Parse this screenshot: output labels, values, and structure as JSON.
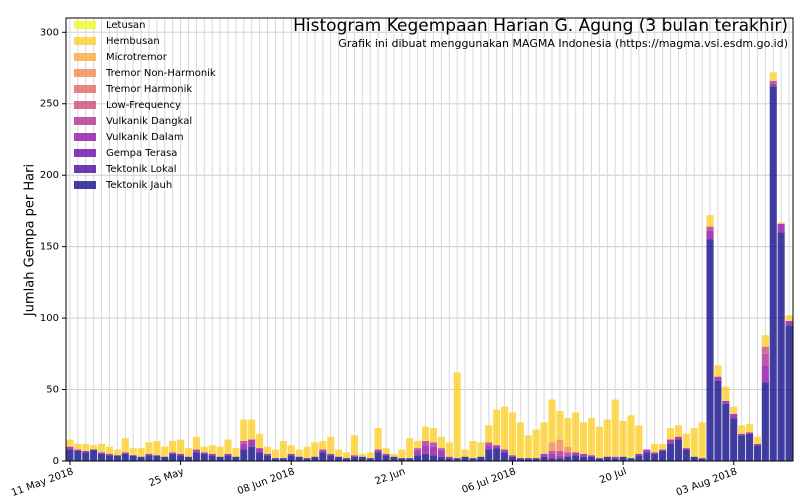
{
  "chart_data": {
    "type": "stacked_bar",
    "title": "Histogram Kegempaan Harian G. Agung (3 bulan terakhir)",
    "subtitle": "Grafik ini dibuat menggunakan MAGMA Indonesia (https://magma.vsi.esdm.go.id)",
    "ylabel": "Jumlah Gempa per Hari",
    "categories": [
      "11 May 2018",
      null,
      null,
      null,
      null,
      null,
      null,
      null,
      null,
      null,
      null,
      null,
      null,
      null,
      "25 May",
      null,
      null,
      null,
      null,
      null,
      null,
      null,
      null,
      null,
      null,
      null,
      null,
      null,
      "08 Jun 2018",
      null,
      null,
      null,
      null,
      null,
      null,
      null,
      null,
      null,
      null,
      null,
      null,
      null,
      "22 Jun",
      null,
      null,
      null,
      null,
      null,
      null,
      null,
      null,
      null,
      null,
      null,
      null,
      null,
      "06 Jul 2018",
      null,
      null,
      null,
      null,
      null,
      null,
      null,
      null,
      null,
      null,
      null,
      null,
      null,
      "20 Jul",
      null,
      null,
      null,
      null,
      null,
      null,
      null,
      null,
      null,
      null,
      null,
      null,
      null,
      "03 Aug 2018",
      null,
      null,
      null,
      null,
      null,
      null,
      null
    ],
    "ylim": [
      0,
      310
    ],
    "yticks": [
      0,
      50,
      100,
      150,
      200,
      250,
      300
    ],
    "grid": true,
    "legend": "upper left",
    "series": [
      {
        "name": "Letusan",
        "color": "#f0f921",
        "values": [
          0,
          0,
          0,
          0,
          0,
          0,
          0,
          0,
          0,
          0,
          0,
          0,
          0,
          0,
          0,
          0,
          0,
          0,
          0,
          0,
          0,
          0,
          0,
          0,
          0,
          0,
          0,
          0,
          0,
          0,
          0,
          0,
          0,
          0,
          0,
          0,
          0,
          0,
          0,
          0,
          0,
          0,
          0,
          0,
          0,
          0,
          0,
          0,
          0,
          0,
          0,
          0,
          0,
          0,
          0,
          0,
          0,
          0,
          0,
          0,
          0,
          0,
          0,
          0,
          0,
          0,
          0,
          0,
          0,
          0,
          0,
          0,
          0,
          0,
          0,
          0,
          0,
          0,
          0,
          0,
          0,
          0,
          0,
          0,
          0,
          0,
          0,
          0,
          0,
          0,
          0,
          0
        ]
      },
      {
        "name": "Hembusan",
        "color": "#fcce25",
        "values": [
          5,
          4,
          5,
          3,
          6,
          5,
          4,
          10,
          5,
          6,
          8,
          10,
          7,
          8,
          10,
          6,
          9,
          4,
          6,
          7,
          10,
          6,
          15,
          14,
          10,
          5,
          6,
          12,
          6,
          5,
          8,
          10,
          6,
          12,
          5,
          4,
          14,
          2,
          4,
          15,
          4,
          2,
          6,
          14,
          5,
          10,
          10,
          8,
          10,
          60,
          5,
          12,
          10,
          12,
          25,
          30,
          30,
          25,
          16,
          20,
          22,
          30,
          20,
          20,
          28,
          22,
          26,
          22,
          26,
          40,
          25,
          30,
          20,
          0,
          6,
          4,
          8,
          8,
          10,
          20,
          25,
          8,
          8,
          10,
          5,
          6,
          6,
          5,
          8,
          6,
          1,
          4
        ]
      },
      {
        "name": "Microtremor",
        "color": "#fca636",
        "values": [
          0,
          0,
          0,
          0,
          0,
          0,
          0,
          0,
          0,
          0,
          0,
          0,
          0,
          0,
          0,
          0,
          0,
          0,
          0,
          0,
          0,
          0,
          0,
          0,
          0,
          0,
          0,
          0,
          0,
          0,
          0,
          0,
          0,
          0,
          0,
          0,
          0,
          0,
          0,
          0,
          0,
          0,
          0,
          0,
          0,
          0,
          0,
          0,
          0,
          0,
          0,
          0,
          0,
          0,
          0,
          0,
          0,
          0,
          0,
          0,
          0,
          0,
          0,
          0,
          0,
          0,
          0,
          0,
          0,
          0,
          0,
          0,
          0,
          0,
          0,
          0,
          0,
          0,
          0,
          0,
          0,
          0,
          0,
          0,
          0,
          0,
          0,
          0,
          0,
          0,
          0,
          0
        ]
      },
      {
        "name": "Tremor Non-Harmonik",
        "color": "#f2844b",
        "values": [
          0,
          0,
          0,
          0,
          0,
          0,
          0,
          0,
          0,
          0,
          0,
          0,
          0,
          0,
          0,
          0,
          0,
          0,
          0,
          0,
          0,
          0,
          0,
          0,
          0,
          0,
          0,
          0,
          0,
          0,
          0,
          0,
          0,
          0,
          0,
          0,
          0,
          0,
          0,
          0,
          0,
          0,
          0,
          0,
          0,
          0,
          0,
          0,
          0,
          0,
          0,
          0,
          0,
          0,
          0,
          0,
          0,
          0,
          0,
          0,
          0,
          6,
          8,
          4,
          0,
          0,
          0,
          0,
          0,
          0,
          0,
          0,
          0,
          0,
          0,
          0,
          0,
          0,
          0,
          0,
          0,
          0,
          0,
          0,
          0,
          0,
          0,
          0,
          0,
          0,
          0,
          0
        ]
      },
      {
        "name": "Tremor Harmonik",
        "color": "#e16462",
        "values": [
          0,
          0,
          0,
          0,
          0,
          0,
          0,
          0,
          0,
          0,
          0,
          0,
          0,
          0,
          0,
          0,
          0,
          0,
          0,
          0,
          0,
          0,
          0,
          0,
          0,
          0,
          0,
          0,
          0,
          0,
          0,
          0,
          0,
          0,
          0,
          0,
          0,
          0,
          0,
          0,
          0,
          0,
          0,
          0,
          0,
          0,
          0,
          0,
          0,
          0,
          0,
          0,
          0,
          0,
          0,
          0,
          0,
          0,
          0,
          0,
          0,
          0,
          0,
          0,
          0,
          0,
          0,
          0,
          0,
          0,
          0,
          0,
          0,
          0,
          0,
          0,
          0,
          0,
          0,
          0,
          0,
          0,
          0,
          0,
          0,
          0,
          0,
          0,
          0,
          0,
          0,
          0
        ]
      },
      {
        "name": "Low-Frequency",
        "color": "#cc4778",
        "values": [
          0,
          0,
          0,
          0,
          0,
          0,
          0,
          0,
          0,
          0,
          0,
          0,
          0,
          0,
          0,
          0,
          0,
          0,
          0,
          0,
          0,
          0,
          0,
          0,
          0,
          0,
          0,
          0,
          0,
          0,
          0,
          0,
          0,
          0,
          0,
          0,
          0,
          0,
          0,
          0,
          0,
          0,
          0,
          0,
          0,
          0,
          0,
          0,
          0,
          0,
          0,
          0,
          0,
          0,
          0,
          0,
          0,
          0,
          0,
          0,
          0,
          0,
          0,
          0,
          0,
          0,
          0,
          0,
          0,
          0,
          0,
          0,
          0,
          0,
          0,
          0,
          0,
          0,
          0,
          0,
          0,
          0,
          0,
          0,
          0,
          0,
          0,
          0,
          5,
          0,
          0,
          0
        ]
      },
      {
        "name": "Vulkanik Dangkal",
        "color": "#b12a90",
        "values": [
          0,
          0,
          0,
          0,
          0,
          0,
          0,
          0,
          0,
          0,
          0,
          0,
          0,
          0,
          0,
          0,
          0,
          0,
          0,
          0,
          0,
          0,
          2,
          0,
          0,
          0,
          0,
          0,
          0,
          0,
          0,
          0,
          0,
          0,
          0,
          0,
          0,
          0,
          0,
          0,
          0,
          0,
          0,
          0,
          2,
          3,
          3,
          2,
          0,
          0,
          0,
          0,
          0,
          2,
          0,
          0,
          0,
          0,
          0,
          0,
          0,
          2,
          3,
          2,
          0,
          0,
          0,
          0,
          0,
          0,
          0,
          0,
          0,
          0,
          0,
          0,
          0,
          0,
          0,
          0,
          0,
          3,
          0,
          0,
          0,
          0,
          0,
          0,
          8,
          2,
          0,
          0
        ]
      },
      {
        "name": "Vulkanik Dalam",
        "color": "#8f0da4",
        "values": [
          2,
          1,
          1,
          0,
          1,
          1,
          0,
          1,
          0,
          0,
          1,
          0,
          0,
          1,
          1,
          0,
          2,
          1,
          1,
          0,
          1,
          0,
          4,
          5,
          3,
          1,
          0,
          0,
          1,
          0,
          0,
          0,
          2,
          1,
          0,
          0,
          1,
          0,
          0,
          2,
          1,
          0,
          0,
          0,
          3,
          6,
          6,
          4,
          1,
          0,
          0,
          0,
          0,
          3,
          2,
          2,
          1,
          0,
          0,
          0,
          2,
          3,
          2,
          1,
          2,
          2,
          1,
          0,
          0,
          1,
          0,
          0,
          1,
          2,
          1,
          1,
          3,
          2,
          1,
          0,
          0,
          6,
          3,
          2,
          3,
          1,
          1,
          1,
          12,
          2,
          6,
          3
        ]
      },
      {
        "name": "Gempa Terasa",
        "color": "#6a00a8",
        "values": [
          0,
          0,
          0,
          0,
          0,
          0,
          0,
          0,
          0,
          0,
          0,
          0,
          0,
          0,
          0,
          0,
          0,
          0,
          0,
          0,
          0,
          0,
          0,
          0,
          0,
          0,
          0,
          0,
          0,
          0,
          0,
          0,
          0,
          0,
          0,
          0,
          0,
          0,
          0,
          0,
          0,
          0,
          0,
          0,
          0,
          0,
          0,
          0,
          0,
          0,
          0,
          0,
          0,
          0,
          0,
          0,
          0,
          0,
          0,
          0,
          0,
          0,
          0,
          0,
          0,
          0,
          0,
          0,
          0,
          0,
          0,
          0,
          0,
          0,
          0,
          0,
          0,
          0,
          0,
          0,
          0,
          0,
          0,
          0,
          0,
          0,
          0,
          0,
          0,
          0,
          0,
          0
        ]
      },
      {
        "name": "Tektonik Lokal",
        "color": "#41049d",
        "values": [
          0,
          0,
          0,
          0,
          0,
          0,
          0,
          0,
          0,
          0,
          0,
          0,
          0,
          0,
          0,
          0,
          0,
          0,
          0,
          0,
          0,
          0,
          0,
          0,
          0,
          0,
          0,
          0,
          0,
          0,
          0,
          0,
          0,
          0,
          0,
          0,
          0,
          0,
          0,
          0,
          0,
          0,
          0,
          0,
          0,
          0,
          0,
          0,
          0,
          0,
          0,
          0,
          0,
          0,
          0,
          0,
          0,
          0,
          0,
          0,
          0,
          0,
          0,
          0,
          0,
          0,
          0,
          0,
          0,
          0,
          0,
          0,
          0,
          0,
          0,
          0,
          0,
          0,
          0,
          0,
          0,
          0,
          0,
          0,
          0,
          0,
          0,
          0,
          0,
          0,
          0,
          0
        ]
      },
      {
        "name": "Tektonik Jauh",
        "color": "#0d0887",
        "values": [
          8,
          7,
          6,
          8,
          5,
          4,
          4,
          5,
          4,
          3,
          4,
          4,
          3,
          5,
          4,
          3,
          6,
          5,
          4,
          3,
          4,
          3,
          8,
          10,
          6,
          4,
          2,
          2,
          4,
          3,
          2,
          3,
          6,
          4,
          3,
          2,
          3,
          3,
          2,
          6,
          4,
          3,
          2,
          2,
          4,
          5,
          4,
          3,
          2,
          2,
          3,
          2,
          3,
          8,
          9,
          6,
          3,
          2,
          2,
          2,
          3,
          2,
          2,
          3,
          4,
          3,
          3,
          2,
          3,
          2,
          3,
          2,
          4,
          6,
          5,
          7,
          12,
          15,
          8,
          3,
          2,
          155,
          56,
          40,
          30,
          18,
          19,
          11,
          55,
          262,
          160,
          95
        ]
      }
    ]
  }
}
